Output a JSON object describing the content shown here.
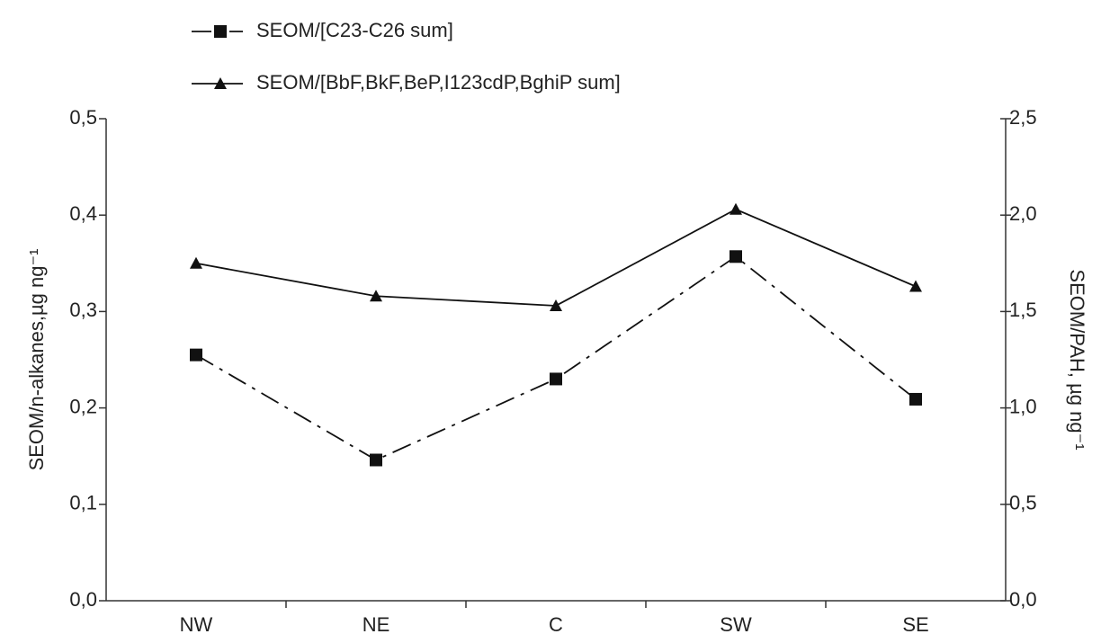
{
  "chart_data": {
    "type": "line",
    "categories": [
      "NW",
      "NE",
      "C",
      "SW",
      "SE"
    ],
    "series": [
      {
        "name": "SEOM/[C23-C26 sum]",
        "color": "#111111",
        "axis": "y",
        "marker": "square",
        "style": "dash-dot",
        "values": [
          0.255,
          0.146,
          0.23,
          0.357,
          0.209
        ]
      },
      {
        "name": "SEOM/[BbF,BkF,BeP,I123cdP,BghiP sum]",
        "color": "#111111",
        "axis": "y2",
        "marker": "triangle",
        "style": "solid",
        "values": [
          1.75,
          1.58,
          1.53,
          2.03,
          1.63
        ]
      }
    ],
    "ylabel": "SEOM/n-alkanes,µg ng⁻¹",
    "y2label": "SEOM/PAH, µg ng⁻¹",
    "ylim": [
      0,
      0.5
    ],
    "yticks": [
      {
        "value": 0,
        "label": "0,0"
      },
      {
        "value": 0.1,
        "label": "0,1"
      },
      {
        "value": 0.2,
        "label": "0,2"
      },
      {
        "value": 0.3,
        "label": "0,3"
      },
      {
        "value": 0.4,
        "label": "0,4"
      },
      {
        "value": 0.5,
        "label": "0,5"
      }
    ],
    "y2lim": [
      0,
      2.5
    ],
    "y2ticks": [
      {
        "value": 0,
        "label": "0,0"
      },
      {
        "value": 0.5,
        "label": "0,5"
      },
      {
        "value": 1,
        "label": "1,0"
      },
      {
        "value": 1.5,
        "label": "1,5"
      },
      {
        "value": 2,
        "label": "2,0"
      },
      {
        "value": 2.5,
        "label": "2,5"
      }
    ],
    "legend": "top-left"
  }
}
